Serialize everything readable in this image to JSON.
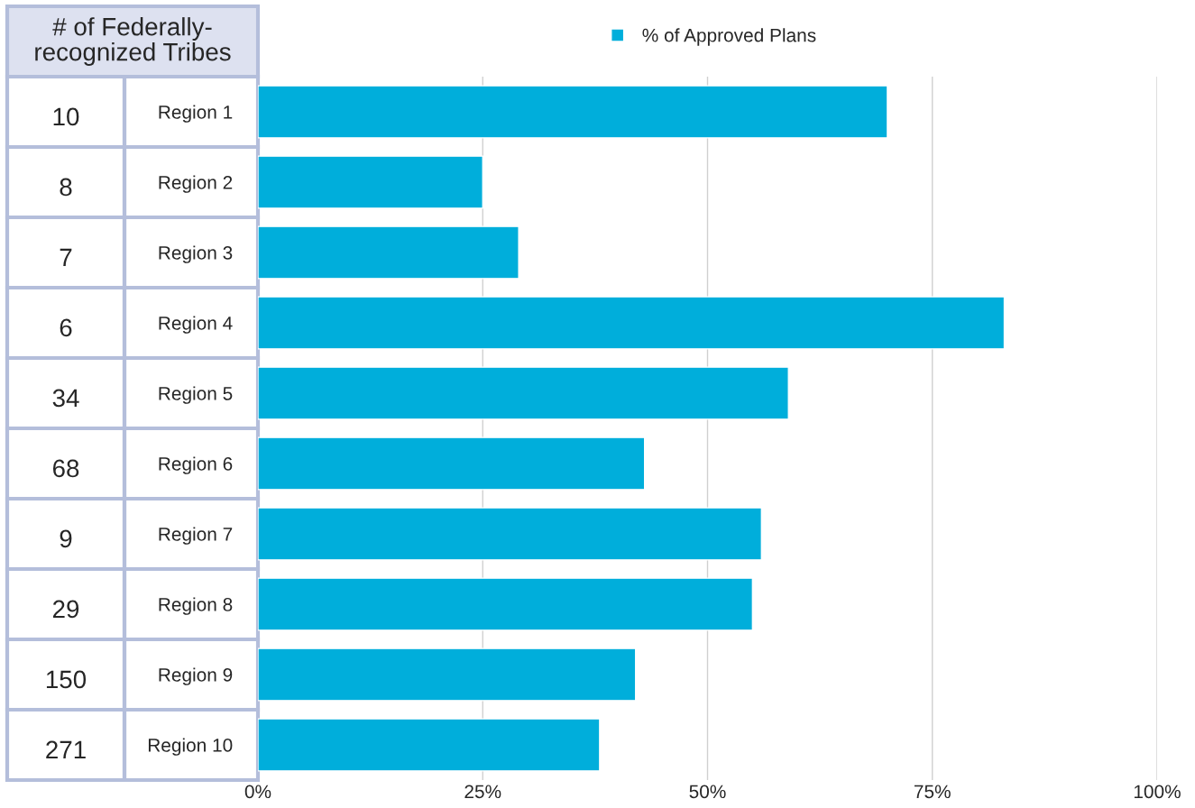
{
  "chart_data": {
    "type": "bar",
    "orientation": "horizontal",
    "categories": [
      "Region 1",
      "Region 2",
      "Region 3",
      "Region 4",
      "Region 5",
      "Region 6",
      "Region 7",
      "Region 8",
      "Region 9",
      "Region 10"
    ],
    "series": [
      {
        "name": "% of Approved Plans",
        "color": "#00aedb",
        "values": [
          70,
          25,
          29,
          83,
          59,
          43,
          56,
          55,
          42,
          38
        ]
      }
    ],
    "xlim": [
      0,
      100
    ],
    "xticks": [
      {
        "value": 0,
        "label": "0%"
      },
      {
        "value": 25,
        "label": "25%"
      },
      {
        "value": 50,
        "label": "50%"
      },
      {
        "value": 75,
        "label": "75%"
      },
      {
        "value": 100,
        "label": "100%"
      }
    ],
    "grid": "x",
    "legend": "top",
    "annotations": [
      "# of Federally-\nrecognized Tribes",
      "10",
      "8",
      "7",
      "6",
      "34",
      "68",
      "9",
      "29",
      "150",
      "271"
    ]
  }
}
